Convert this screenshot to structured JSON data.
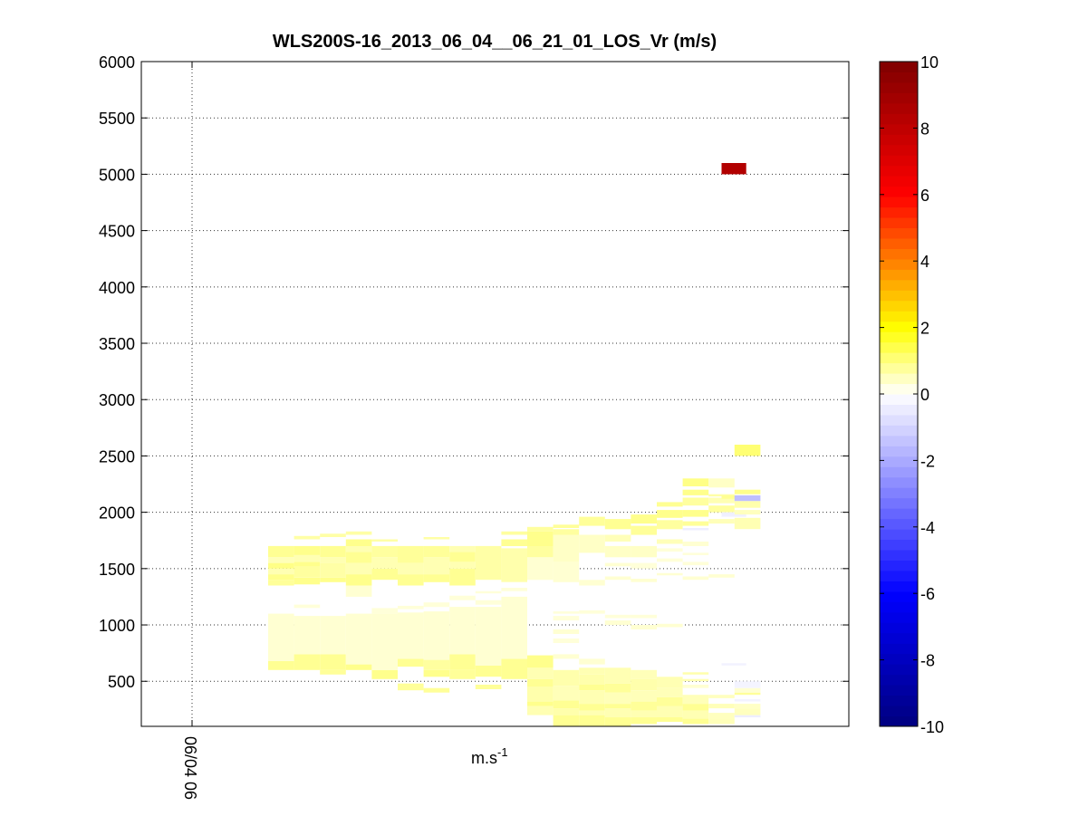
{
  "chart_data": {
    "type": "heatmap",
    "title": "WLS200S-16_2013_06_04__06_21_01_LOS_Vr (m/s)",
    "xlabel": "m.s",
    "xlabel_superscript": "-1",
    "ylabel": "",
    "x_tick_labels": [
      "06/04 06"
    ],
    "y_ticks": [
      500,
      1000,
      1500,
      2000,
      2500,
      3000,
      3500,
      4000,
      4500,
      5000,
      5500,
      6000
    ],
    "ylim": [
      100,
      6000
    ],
    "grid": true,
    "colorbar": {
      "range": [
        -10,
        10
      ],
      "ticks": [
        -10,
        -8,
        -6,
        -4,
        -2,
        0,
        2,
        4,
        6,
        8,
        10
      ],
      "levels": 64,
      "colormap": [
        {
          "v": -10,
          "color": "#00007f"
        },
        {
          "v": -6,
          "color": "#0000ff"
        },
        {
          "v": 0,
          "color": "#ffffff"
        },
        {
          "v": 2,
          "color": "#ffff00"
        },
        {
          "v": 6,
          "color": "#ff0000"
        },
        {
          "v": 10,
          "color": "#7f0000"
        }
      ]
    },
    "time_columns": [
      {
        "t": 0,
        "cells": [
          [
            600,
            680,
            0.85
          ],
          [
            680,
            1100,
            0.35
          ],
          [
            1350,
            1400,
            0.8
          ],
          [
            1400,
            1450,
            0.9
          ],
          [
            1450,
            1500,
            0.6
          ],
          [
            1500,
            1550,
            0.95
          ],
          [
            1550,
            1600,
            0.55
          ],
          [
            1600,
            1700,
            0.85
          ]
        ]
      },
      {
        "t": 1,
        "cells": [
          [
            600,
            740,
            0.85
          ],
          [
            740,
            1080,
            0.35
          ],
          [
            1150,
            1180,
            0.3
          ],
          [
            1360,
            1420,
            0.9
          ],
          [
            1420,
            1520,
            0.75
          ],
          [
            1520,
            1560,
            0.9
          ],
          [
            1560,
            1620,
            0.6
          ],
          [
            1620,
            1700,
            0.9
          ],
          [
            1760,
            1790,
            0.7
          ]
        ]
      },
      {
        "t": 2,
        "cells": [
          [
            560,
            600,
            0.8
          ],
          [
            600,
            740,
            0.85
          ],
          [
            740,
            1080,
            0.35
          ],
          [
            1380,
            1420,
            0.9
          ],
          [
            1420,
            1550,
            0.7
          ],
          [
            1550,
            1600,
            0.6
          ],
          [
            1600,
            1700,
            0.85
          ],
          [
            1780,
            1810,
            0.7
          ]
        ]
      },
      {
        "t": 3,
        "cells": [
          [
            600,
            650,
            0.9
          ],
          [
            650,
            1100,
            0.35
          ],
          [
            1250,
            1350,
            0.35
          ],
          [
            1350,
            1450,
            0.9
          ],
          [
            1450,
            1550,
            0.6
          ],
          [
            1550,
            1650,
            0.85
          ],
          [
            1650,
            1700,
            0.6
          ],
          [
            1700,
            1760,
            0.9
          ],
          [
            1800,
            1830,
            0.7
          ]
        ]
      },
      {
        "t": 4,
        "cells": [
          [
            520,
            600,
            0.9
          ],
          [
            600,
            1100,
            0.35
          ],
          [
            1100,
            1150,
            0.3
          ],
          [
            1400,
            1500,
            0.85
          ],
          [
            1500,
            1600,
            0.6
          ],
          [
            1600,
            1700,
            0.75
          ],
          [
            1740,
            1760,
            0.7
          ]
        ]
      },
      {
        "t": 5,
        "cells": [
          [
            420,
            480,
            0.8
          ],
          [
            630,
            700,
            0.85
          ],
          [
            700,
            1110,
            0.35
          ],
          [
            1140,
            1170,
            0.3
          ],
          [
            1350,
            1450,
            0.85
          ],
          [
            1450,
            1550,
            0.6
          ],
          [
            1550,
            1700,
            0.8
          ]
        ]
      },
      {
        "t": 6,
        "cells": [
          [
            400,
            440,
            0.8
          ],
          [
            540,
            600,
            0.9
          ],
          [
            600,
            690,
            0.75
          ],
          [
            690,
            1120,
            0.35
          ],
          [
            1160,
            1200,
            0.3
          ],
          [
            1380,
            1450,
            0.85
          ],
          [
            1450,
            1600,
            0.6
          ],
          [
            1600,
            1700,
            0.8
          ],
          [
            1760,
            1780,
            0.7
          ]
        ]
      },
      {
        "t": 7,
        "cells": [
          [
            520,
            600,
            0.8
          ],
          [
            600,
            740,
            0.85
          ],
          [
            740,
            1160,
            0.35
          ],
          [
            1220,
            1260,
            0.3
          ],
          [
            1350,
            1500,
            0.85
          ],
          [
            1500,
            1560,
            0.6
          ],
          [
            1560,
            1650,
            0.85
          ],
          [
            1650,
            1700,
            0.6
          ]
        ]
      },
      {
        "t": 8,
        "cells": [
          [
            430,
            470,
            0.8
          ],
          [
            540,
            640,
            0.85
          ],
          [
            640,
            1160,
            0.35
          ],
          [
            1180,
            1220,
            0.3
          ],
          [
            1280,
            1300,
            0.3
          ],
          [
            1400,
            1700,
            0.7
          ]
        ]
      },
      {
        "t": 9,
        "cells": [
          [
            520,
            700,
            0.85
          ],
          [
            700,
            1250,
            0.35
          ],
          [
            1300,
            1330,
            0.3
          ],
          [
            1380,
            1680,
            0.65
          ],
          [
            1700,
            1760,
            0.85
          ],
          [
            1800,
            1830,
            0.75
          ]
        ]
      },
      {
        "t": 10,
        "cells": [
          [
            200,
            280,
            0.6
          ],
          [
            280,
            320,
            0.9
          ],
          [
            320,
            450,
            0.65
          ],
          [
            450,
            520,
            0.85
          ],
          [
            520,
            620,
            0.6
          ],
          [
            620,
            730,
            0.9
          ],
          [
            1400,
            1600,
            0.35
          ],
          [
            1600,
            1700,
            0.75
          ],
          [
            1700,
            1830,
            0.9
          ],
          [
            1830,
            1870,
            0.75
          ]
        ]
      },
      {
        "t": 11,
        "cells": [
          [
            100,
            200,
            0.85
          ],
          [
            200,
            260,
            0.65
          ],
          [
            260,
            330,
            0.85
          ],
          [
            330,
            460,
            0.55
          ],
          [
            460,
            600,
            0.65
          ],
          [
            700,
            740,
            0.35
          ],
          [
            840,
            880,
            0.3
          ],
          [
            920,
            960,
            0.35
          ],
          [
            1040,
            1080,
            0.3
          ],
          [
            1100,
            1120,
            0.3
          ],
          [
            1380,
            1560,
            0.35
          ],
          [
            1560,
            1800,
            0.45
          ],
          [
            1800,
            1850,
            0.75
          ],
          [
            1860,
            1890,
            0.8
          ]
        ]
      },
      {
        "t": 12,
        "cells": [
          [
            100,
            200,
            0.85
          ],
          [
            200,
            240,
            0.6
          ],
          [
            240,
            300,
            0.85
          ],
          [
            300,
            420,
            0.6
          ],
          [
            420,
            470,
            0.85
          ],
          [
            470,
            560,
            0.65
          ],
          [
            560,
            620,
            0.6
          ],
          [
            650,
            700,
            0.35
          ],
          [
            1100,
            1130,
            0.3
          ],
          [
            1350,
            1400,
            0.35
          ],
          [
            1640,
            1800,
            0.45
          ],
          [
            1880,
            1960,
            0.8
          ]
        ]
      },
      {
        "t": 13,
        "cells": [
          [
            100,
            180,
            0.85
          ],
          [
            180,
            260,
            0.6
          ],
          [
            260,
            300,
            0.85
          ],
          [
            300,
            400,
            0.55
          ],
          [
            400,
            480,
            0.8
          ],
          [
            480,
            620,
            0.6
          ],
          [
            1000,
            1040,
            0.35
          ],
          [
            1060,
            1090,
            0.3
          ],
          [
            1400,
            1430,
            0.35
          ],
          [
            1520,
            1550,
            0.35
          ],
          [
            1600,
            1700,
            0.45
          ],
          [
            1740,
            1800,
            0.55
          ],
          [
            1850,
            1940,
            0.85
          ]
        ]
      },
      {
        "t": 14,
        "cells": [
          [
            120,
            180,
            0.85
          ],
          [
            180,
            240,
            0.6
          ],
          [
            240,
            320,
            0.8
          ],
          [
            320,
            420,
            0.55
          ],
          [
            420,
            520,
            0.65
          ],
          [
            520,
            600,
            0.55
          ],
          [
            960,
            1000,
            0.35
          ],
          [
            1060,
            1090,
            0.3
          ],
          [
            1380,
            1410,
            0.35
          ],
          [
            1500,
            1550,
            0.3
          ],
          [
            1600,
            1700,
            0.45
          ],
          [
            1800,
            1880,
            0.8
          ],
          [
            1900,
            1980,
            0.9
          ]
        ]
      },
      {
        "t": 15,
        "cells": [
          [
            140,
            180,
            0.85
          ],
          [
            180,
            280,
            0.6
          ],
          [
            280,
            360,
            0.8
          ],
          [
            360,
            440,
            0.55
          ],
          [
            440,
            540,
            0.6
          ],
          [
            980,
            1010,
            0.35
          ],
          [
            1440,
            1460,
            0.35
          ],
          [
            1560,
            1590,
            0.3
          ],
          [
            1650,
            1680,
            0.3
          ],
          [
            1720,
            1760,
            0.55
          ],
          [
            1850,
            1930,
            0.75
          ],
          [
            1950,
            2020,
            0.9
          ],
          [
            2050,
            2090,
            0.85
          ]
        ]
      },
      {
        "t": 16,
        "cells": [
          [
            120,
            170,
            0.85
          ],
          [
            170,
            240,
            0.6
          ],
          [
            240,
            300,
            0.85
          ],
          [
            300,
            380,
            0.55
          ],
          [
            440,
            470,
            0.35
          ],
          [
            500,
            520,
            0.6
          ],
          [
            560,
            580,
            0.65
          ],
          [
            1400,
            1430,
            0.35
          ],
          [
            1530,
            1560,
            0.3
          ],
          [
            1620,
            1640,
            0.3
          ],
          [
            1700,
            1740,
            0.35
          ],
          [
            1840,
            1860,
            -0.4
          ],
          [
            1880,
            1920,
            0.8
          ],
          [
            1960,
            2020,
            0.9
          ],
          [
            2060,
            2130,
            0.75
          ],
          [
            2150,
            2200,
            0.9
          ],
          [
            2230,
            2300,
            0.95
          ]
        ]
      },
      {
        "t": 17,
        "cells": [
          [
            120,
            160,
            0.55
          ],
          [
            160,
            220,
            0.5
          ],
          [
            260,
            300,
            0.55
          ],
          [
            350,
            380,
            0.5
          ],
          [
            1420,
            1450,
            0.35
          ],
          [
            1900,
            1940,
            0.55
          ],
          [
            2000,
            2060,
            0.75
          ],
          [
            2080,
            2130,
            0.6
          ],
          [
            2220,
            2300,
            0.45
          ],
          [
            2140,
            2160,
            0.7
          ]
        ]
      },
      {
        "t": 17.5,
        "cells": [
          [
            640,
            660,
            -0.3
          ],
          [
            1960,
            2000,
            -0.35
          ],
          [
            2120,
            2150,
            0.85
          ],
          [
            5000,
            5100,
            8.4
          ]
        ]
      },
      {
        "t": 18,
        "cells": [
          [
            180,
            200,
            -0.4
          ],
          [
            200,
            260,
            0.5
          ],
          [
            260,
            300,
            0.45
          ],
          [
            320,
            340,
            -0.3
          ],
          [
            380,
            400,
            0.8
          ],
          [
            400,
            440,
            0.35
          ],
          [
            440,
            500,
            -0.25
          ],
          [
            1850,
            1950,
            0.6
          ],
          [
            1980,
            2020,
            0.5
          ],
          [
            2040,
            2100,
            0.65
          ],
          [
            2100,
            2150,
            -1.5
          ],
          [
            2160,
            2200,
            0.9
          ],
          [
            2500,
            2600,
            1.1
          ]
        ]
      }
    ]
  }
}
